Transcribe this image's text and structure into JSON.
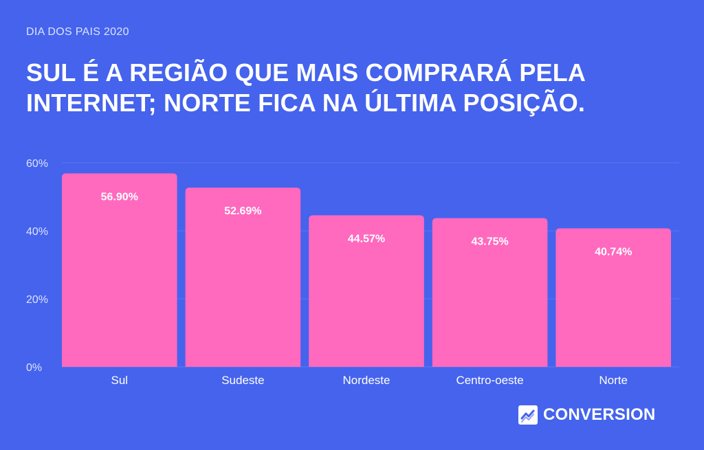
{
  "header": {
    "kicker": "DIA DOS PAIS 2020",
    "title": "SUL É A REGIÃO QUE MAIS COMPRARÁ PELA INTERNET; NORTE FICA NA ÚLTIMA POSIÇÃO."
  },
  "brand": {
    "name": "CONVERSION",
    "icon": "trend-chart-icon"
  },
  "colors": {
    "background": "#4563ED",
    "bar": "#FF69BE",
    "text": "#FFFFFF"
  },
  "chart_data": {
    "type": "bar",
    "categories": [
      "Sul",
      "Sudeste",
      "Nordeste",
      "Centro-oeste",
      "Norte"
    ],
    "values": [
      56.9,
      52.69,
      44.57,
      43.75,
      40.74
    ],
    "value_labels": [
      "56.90%",
      "52.69%",
      "44.57%",
      "43.75%",
      "40.74%"
    ],
    "y_ticks": [
      0,
      20,
      40,
      60
    ],
    "y_tick_labels": [
      "0%",
      "20%",
      "40%",
      "60%"
    ],
    "ylim": [
      0,
      60
    ],
    "grid": true,
    "legend": false
  }
}
